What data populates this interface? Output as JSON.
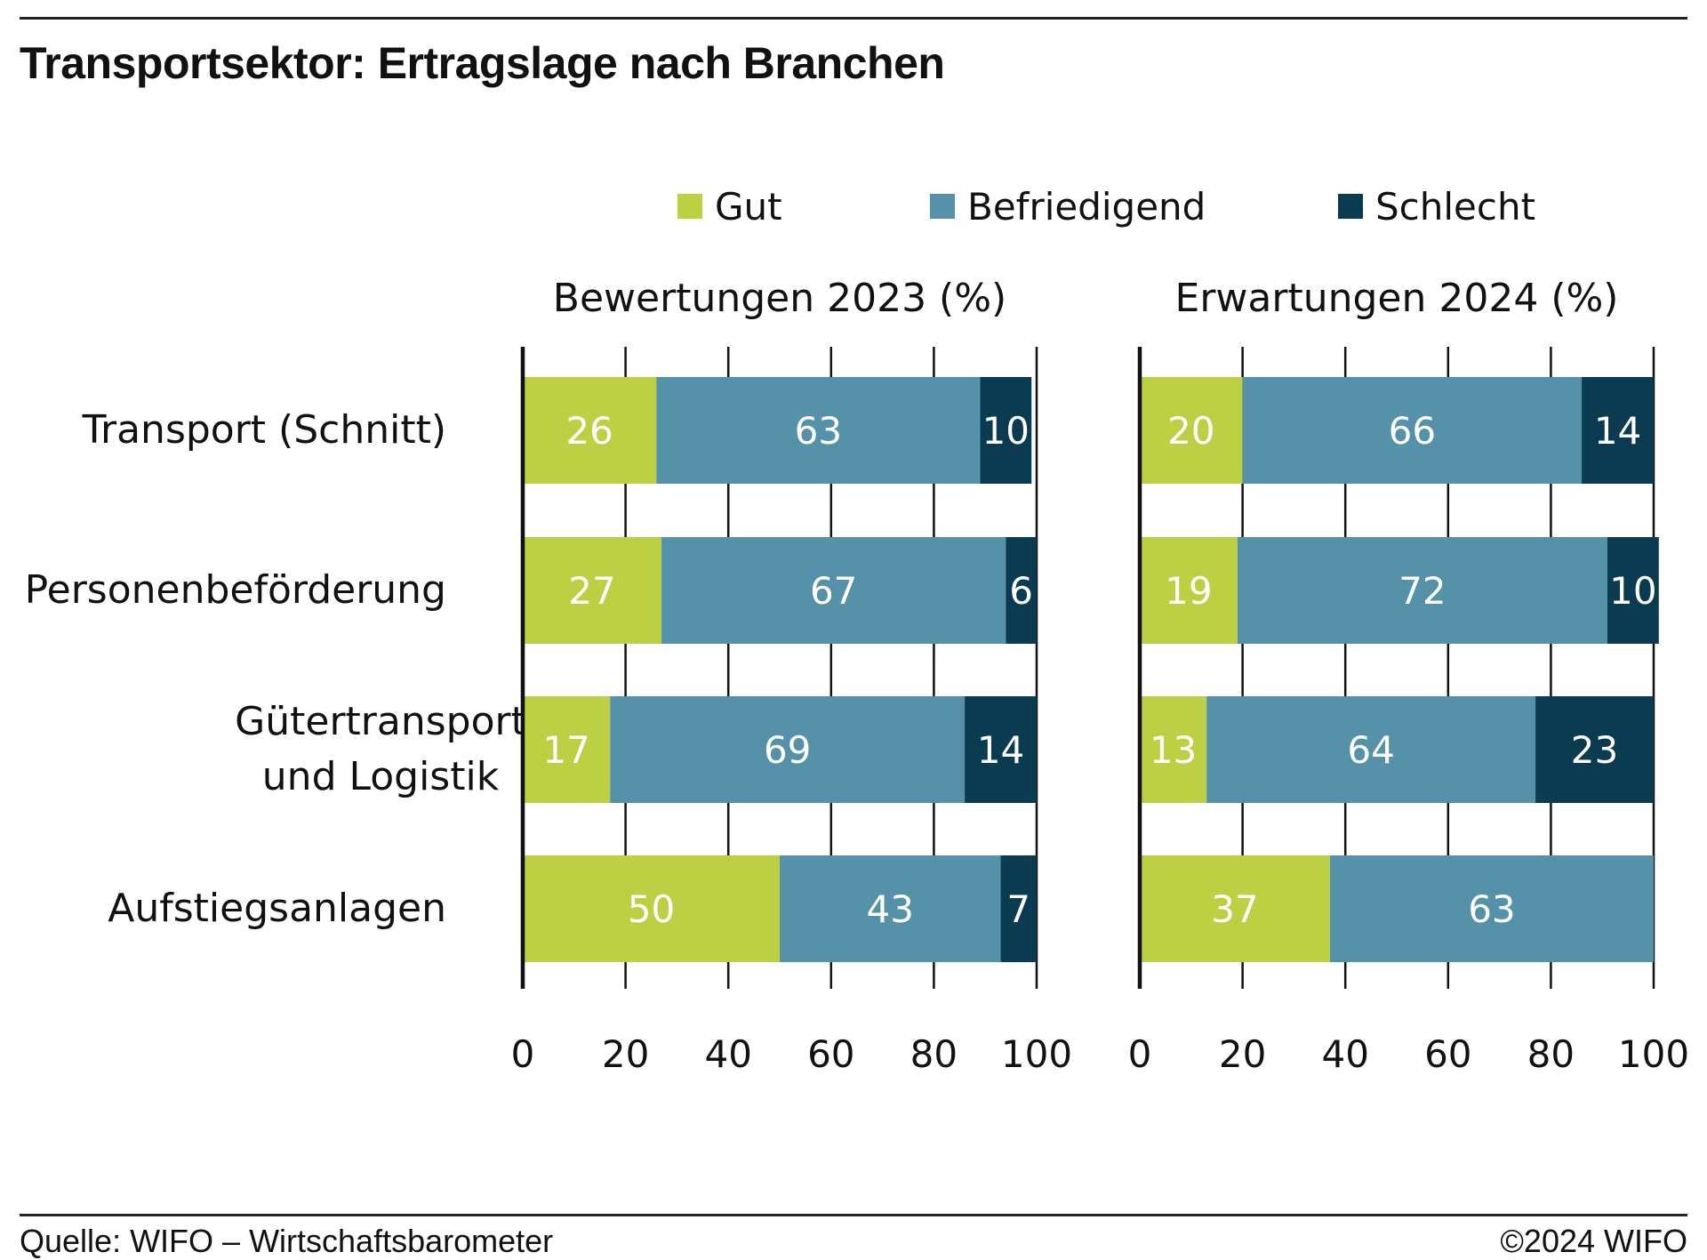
{
  "title": "Transportsektor: Ertragslage nach Branchen",
  "footer": {
    "source": "Quelle: WIFO – Wirtschaftsbarometer",
    "copyright": "©2024 WIFO"
  },
  "colors": {
    "Gut": "#bdd043",
    "Befriedigend": "#5592aa",
    "Schlecht": "#0a3b50"
  },
  "chart_data": {
    "type": "bar",
    "orientation": "horizontal",
    "stacked": true,
    "legend": [
      "Gut",
      "Befriedigend",
      "Schlecht"
    ],
    "legend_position": "top",
    "categories": [
      [
        "Transport (Schnitt)"
      ],
      [
        "Personenbeförderung"
      ],
      [
        "Gütertransport",
        "und Logistik"
      ],
      [
        "Aufstiegsanlagen"
      ]
    ],
    "panels": [
      {
        "title": "Bewertungen 2023 (%)",
        "xlim": [
          0,
          100
        ],
        "xticks": [
          0,
          20,
          40,
          60,
          80,
          100
        ],
        "series": [
          {
            "name": "Gut",
            "values": [
              26,
              27,
              17,
              50
            ]
          },
          {
            "name": "Befriedigend",
            "values": [
              63,
              67,
              69,
              43
            ]
          },
          {
            "name": "Schlecht",
            "values": [
              10,
              6,
              14,
              7
            ]
          }
        ]
      },
      {
        "title": "Erwartungen 2024 (%)",
        "xlim": [
          0,
          100
        ],
        "xticks": [
          0,
          20,
          40,
          60,
          80,
          100
        ],
        "series": [
          {
            "name": "Gut",
            "values": [
              20,
              19,
              13,
              37
            ]
          },
          {
            "name": "Befriedigend",
            "values": [
              66,
              72,
              64,
              63
            ]
          },
          {
            "name": "Schlecht",
            "values": [
              14,
              10,
              23,
              0
            ]
          }
        ]
      }
    ],
    "grid": "vertical"
  }
}
